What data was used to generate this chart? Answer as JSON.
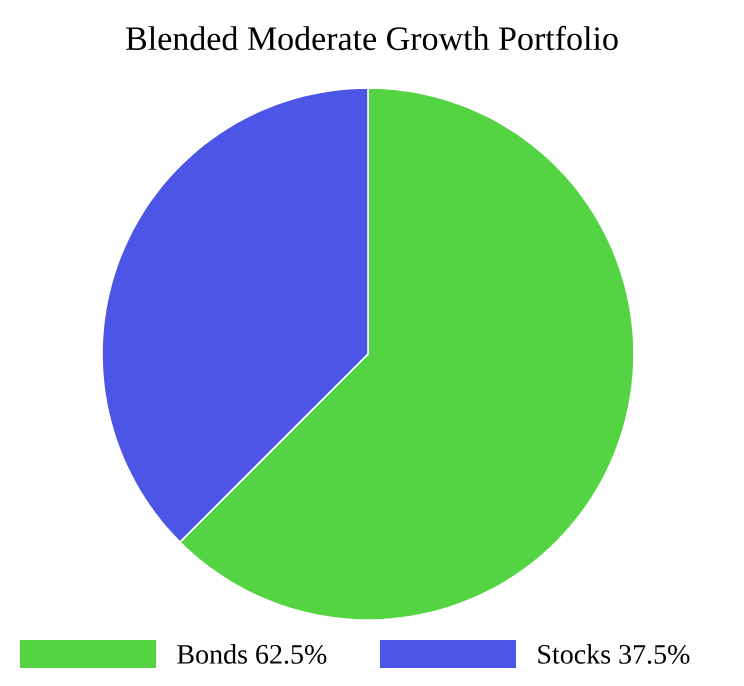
{
  "chart_data": {
    "type": "pie",
    "title": "Blended Moderate Growth Portfolio",
    "categories": [
      "Bonds",
      "Stocks"
    ],
    "values": [
      62.5,
      37.5
    ],
    "value_labels": [
      "62.5%",
      "37.5%"
    ],
    "colors": [
      "#55d443",
      "#4d55e6"
    ],
    "legend": "bottom"
  }
}
